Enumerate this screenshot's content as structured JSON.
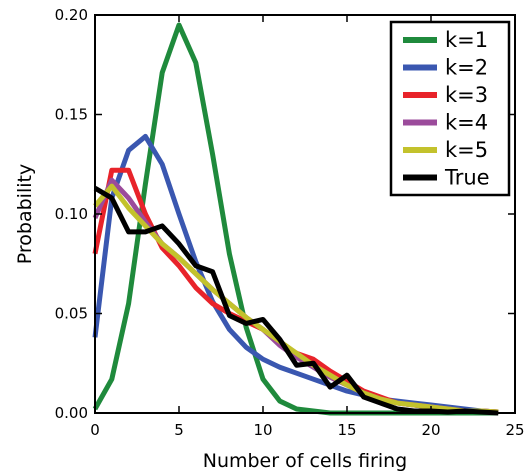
{
  "chart_data": {
    "type": "line",
    "xlabel": "Number of cells firing",
    "ylabel": "Probability",
    "xlim": [
      0,
      25
    ],
    "ylim": [
      0,
      0.2
    ],
    "x_ticks": [
      0,
      5,
      10,
      15,
      20,
      25
    ],
    "y_ticks": [
      0.0,
      0.05,
      0.1,
      0.15,
      0.2
    ],
    "x_tick_labels": [
      "0",
      "5",
      "10",
      "15",
      "20",
      "25"
    ],
    "y_tick_labels": [
      "0.00",
      "0.05",
      "0.10",
      "0.15",
      "0.20"
    ],
    "grid": false,
    "legend_position": "top-right",
    "series": [
      {
        "name": "k=1",
        "color": "#1f8a3c",
        "x": [
          0,
          1,
          2,
          3,
          4,
          5,
          6,
          7,
          8,
          9,
          10,
          11,
          12,
          13,
          14,
          15,
          16,
          17,
          18,
          19,
          20,
          21,
          22,
          23,
          24
        ],
        "values": [
          0.002,
          0.017,
          0.055,
          0.115,
          0.171,
          0.195,
          0.176,
          0.13,
          0.08,
          0.043,
          0.017,
          0.006,
          0.002,
          0.001,
          0.0,
          0.0,
          0.0,
          0.0,
          0.0,
          0.0,
          0.0,
          0.0,
          0.0,
          0.0,
          0.0
        ]
      },
      {
        "name": "k=2",
        "color": "#3a57b0",
        "x": [
          0,
          1,
          2,
          3,
          4,
          5,
          6,
          7,
          8,
          9,
          10,
          11,
          12,
          13,
          14,
          15,
          16,
          17,
          18,
          19,
          20,
          21,
          22,
          23,
          24
        ],
        "values": [
          0.038,
          0.108,
          0.132,
          0.139,
          0.125,
          0.1,
          0.076,
          0.056,
          0.042,
          0.033,
          0.027,
          0.023,
          0.02,
          0.017,
          0.014,
          0.011,
          0.009,
          0.007,
          0.006,
          0.005,
          0.004,
          0.003,
          0.002,
          0.001,
          0.0005
        ]
      },
      {
        "name": "k=3",
        "color": "#e8232a",
        "x": [
          0,
          1,
          2,
          3,
          4,
          5,
          6,
          7,
          8,
          9,
          10,
          11,
          12,
          13,
          14,
          15,
          16,
          17,
          18,
          19,
          20,
          21,
          22,
          23,
          24
        ],
        "values": [
          0.08,
          0.122,
          0.122,
          0.1,
          0.083,
          0.074,
          0.063,
          0.055,
          0.05,
          0.046,
          0.042,
          0.035,
          0.03,
          0.027,
          0.021,
          0.016,
          0.011,
          0.008,
          0.005,
          0.004,
          0.003,
          0.002,
          0.001,
          0.001,
          0.0005
        ]
      },
      {
        "name": "k=4",
        "color": "#9b4b9b",
        "x": [
          0,
          1,
          2,
          3,
          4,
          5,
          6,
          7,
          8,
          9,
          10,
          11,
          12,
          13,
          14,
          15,
          16,
          17,
          18,
          19,
          20,
          21,
          22,
          23,
          24
        ],
        "values": [
          0.098,
          0.117,
          0.108,
          0.096,
          0.085,
          0.078,
          0.07,
          0.062,
          0.055,
          0.048,
          0.042,
          0.034,
          0.028,
          0.023,
          0.018,
          0.014,
          0.01,
          0.007,
          0.005,
          0.004,
          0.003,
          0.002,
          0.001,
          0.001,
          0.0005
        ]
      },
      {
        "name": "k=5",
        "color": "#c3c22c",
        "x": [
          0,
          1,
          2,
          3,
          4,
          5,
          6,
          7,
          8,
          9,
          10,
          11,
          12,
          13,
          14,
          15,
          16,
          17,
          18,
          19,
          20,
          21,
          22,
          23,
          24
        ],
        "values": [
          0.104,
          0.114,
          0.103,
          0.094,
          0.085,
          0.078,
          0.07,
          0.062,
          0.055,
          0.048,
          0.042,
          0.036,
          0.03,
          0.024,
          0.019,
          0.014,
          0.01,
          0.007,
          0.005,
          0.004,
          0.003,
          0.002,
          0.001,
          0.001,
          0.0005
        ]
      },
      {
        "name": "True",
        "color": "#000000",
        "x": [
          0,
          1,
          2,
          3,
          4,
          5,
          6,
          7,
          8,
          9,
          10,
          11,
          12,
          13,
          14,
          15,
          16,
          17,
          18,
          19,
          20,
          21,
          22,
          23,
          24
        ],
        "values": [
          0.113,
          0.108,
          0.091,
          0.091,
          0.094,
          0.085,
          0.074,
          0.071,
          0.049,
          0.045,
          0.047,
          0.037,
          0.024,
          0.025,
          0.013,
          0.019,
          0.008,
          0.005,
          0.002,
          0.001,
          0.001,
          0.0005,
          0.001,
          0.0005,
          0.0
        ]
      }
    ]
  }
}
